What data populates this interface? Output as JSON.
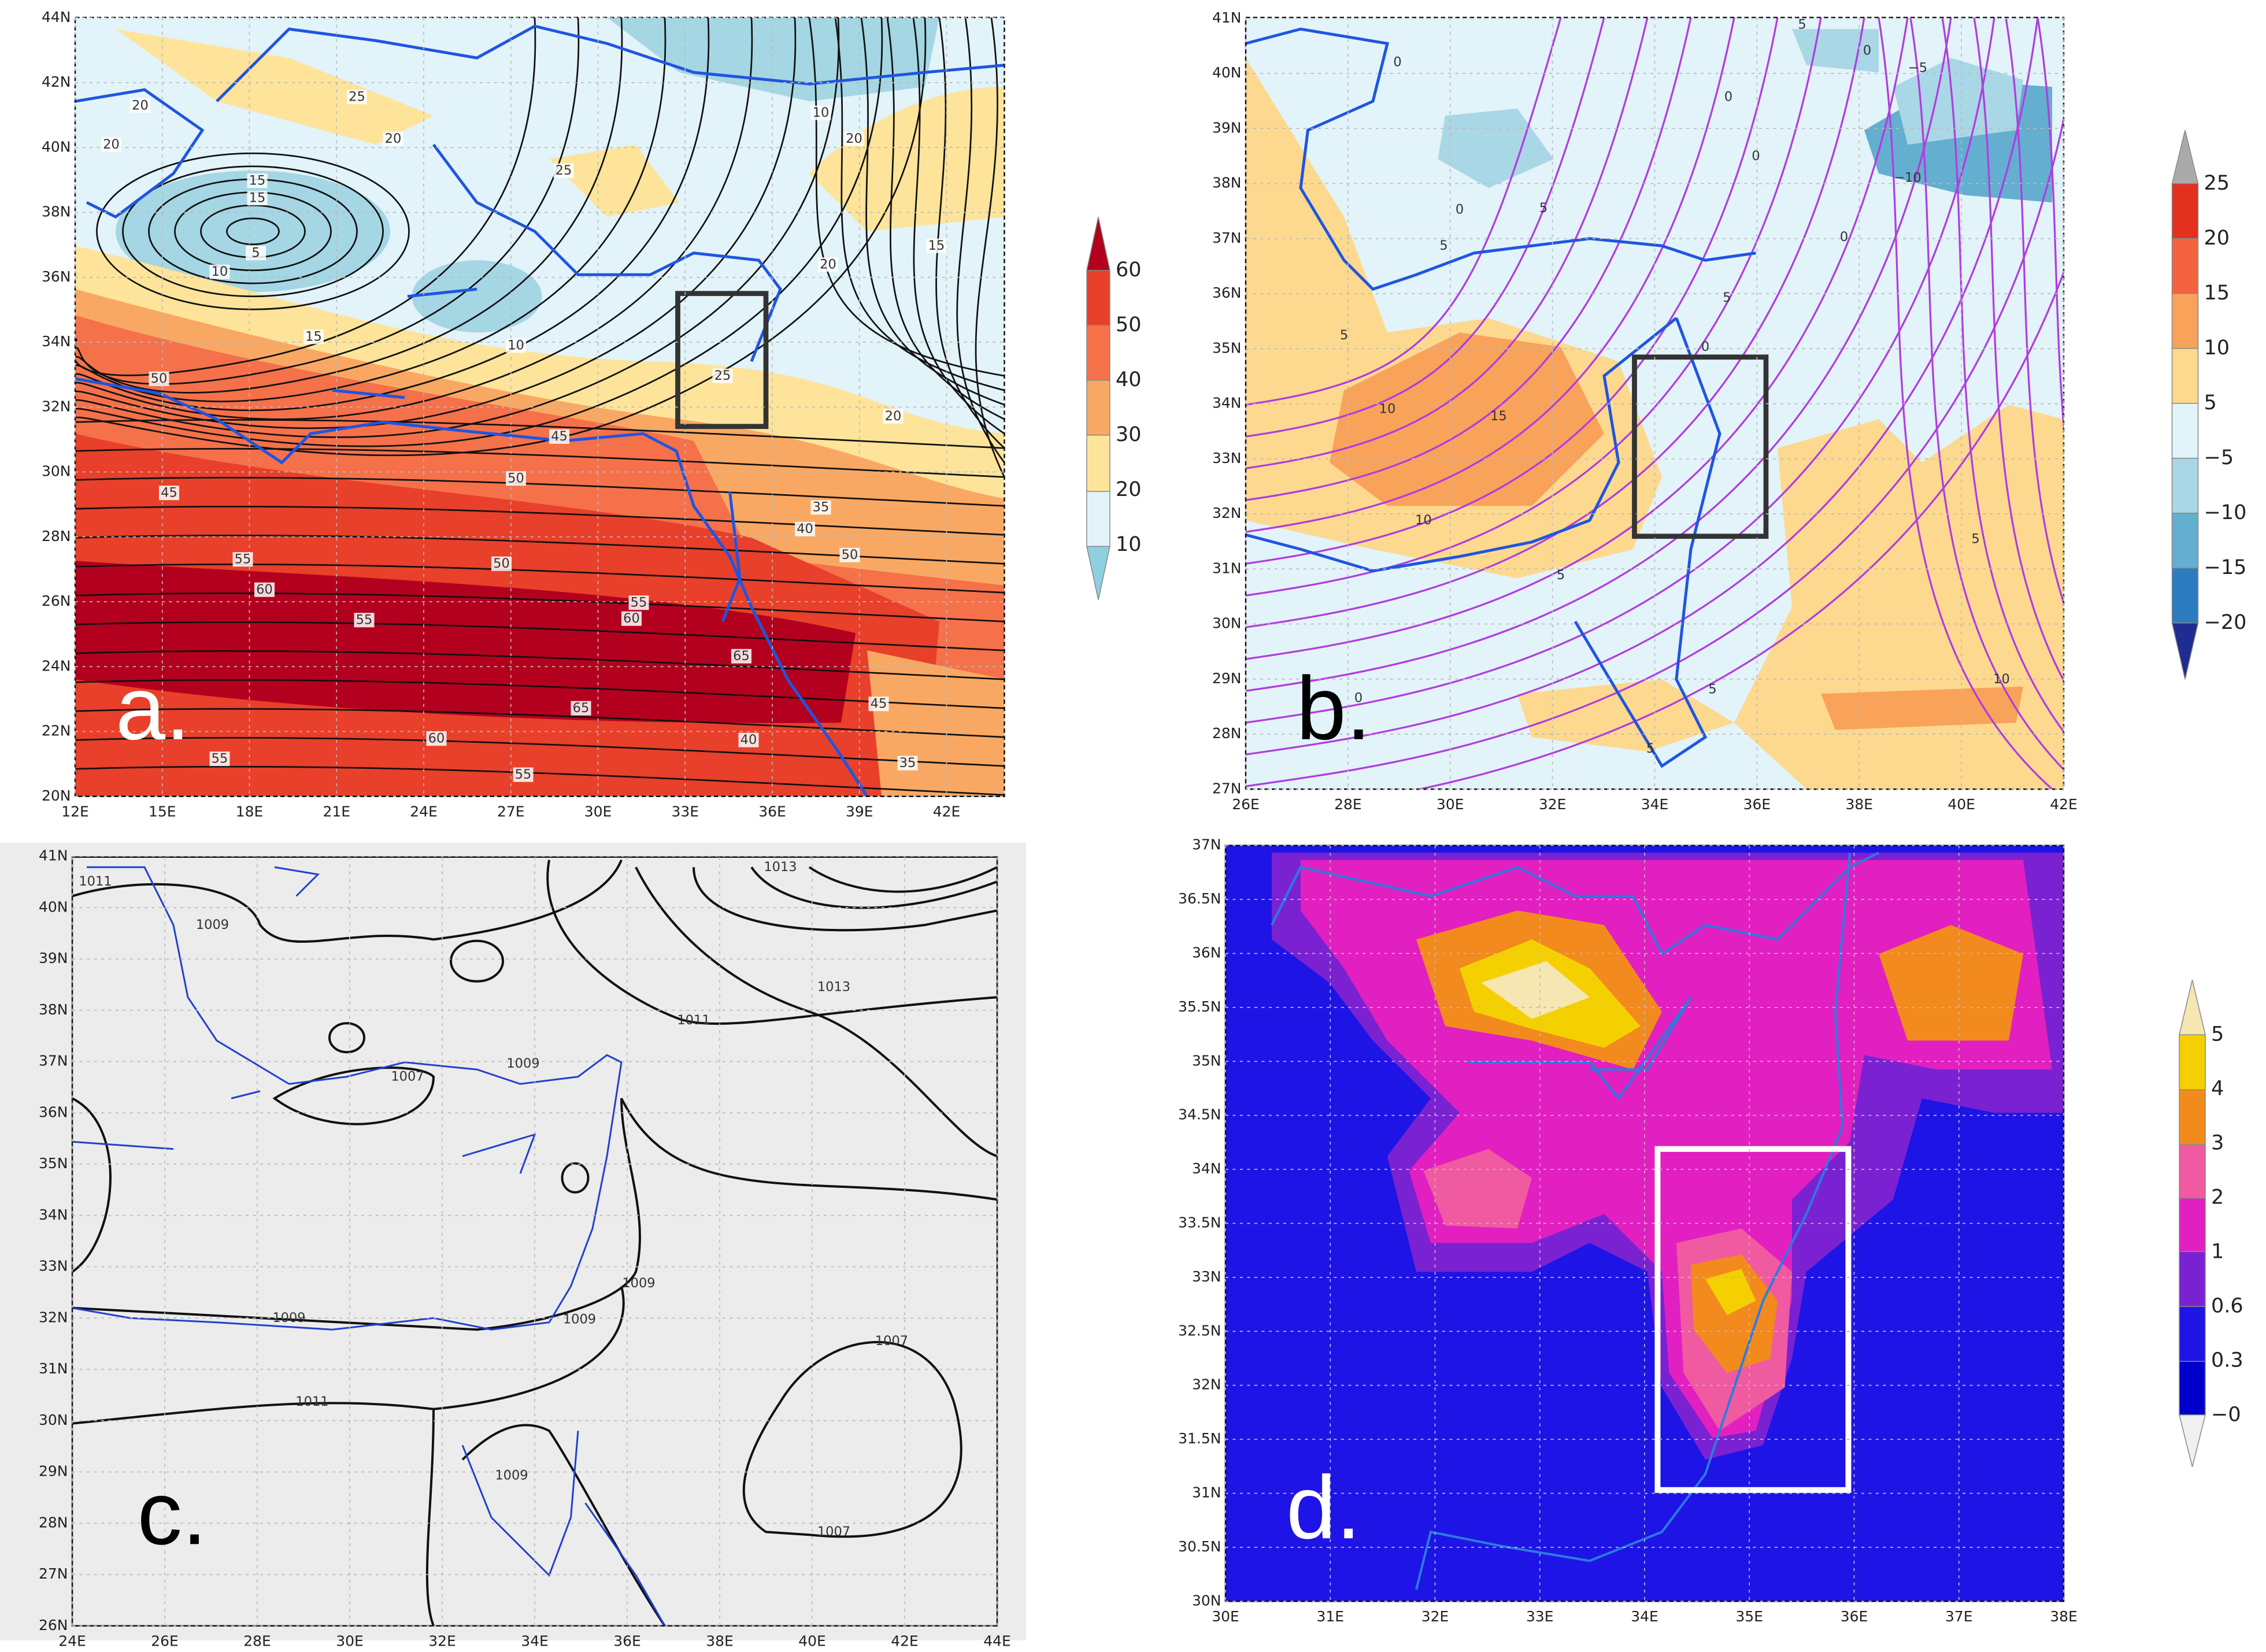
{
  "panels": [
    {
      "letter": "a.",
      "xticks": [
        "12E",
        "15E",
        "18E",
        "21E",
        "24E",
        "27E",
        "30E",
        "33E",
        "36E",
        "39E",
        "42E"
      ],
      "yticks": [
        "20N",
        "22N",
        "24N",
        "26N",
        "28N",
        "30N",
        "32N",
        "34N",
        "36N",
        "38N",
        "40N",
        "42N",
        "44N"
      ],
      "colorbar": [
        "60",
        "50",
        "40",
        "30",
        "20",
        "10"
      ],
      "contour_labels": [
        "20",
        "20",
        "25",
        "20",
        "15",
        "15",
        "5",
        "10",
        "15",
        "10",
        "25",
        "20",
        "10",
        "20",
        "15",
        "20",
        "25",
        "50",
        "45",
        "50",
        "45",
        "50",
        "55",
        "60",
        "55",
        "55",
        "60",
        "65",
        "65",
        "60",
        "55",
        "55",
        "35",
        "40",
        "50",
        "45",
        "40",
        "35"
      ]
    },
    {
      "letter": "b.",
      "xticks": [
        "26E",
        "28E",
        "30E",
        "32E",
        "34E",
        "36E",
        "38E",
        "40E",
        "42E"
      ],
      "yticks": [
        "27N",
        "28N",
        "29N",
        "30N",
        "31N",
        "32N",
        "33N",
        "34N",
        "35N",
        "36N",
        "37N",
        "38N",
        "39N",
        "40N",
        "41N"
      ],
      "colorbar": [
        "25",
        "20",
        "15",
        "10",
        "5",
        "−5",
        "−10",
        "−15",
        "−20"
      ],
      "contour_labels": [
        "0",
        "5",
        "0",
        "−5",
        "0",
        "0",
        "−10",
        "5",
        "0",
        "5",
        "0",
        "5",
        "5",
        "10",
        "15",
        "0",
        "10",
        "5",
        "5",
        "10",
        "0",
        "5",
        "5"
      ]
    },
    {
      "letter": "c.",
      "xticks": [
        "24E",
        "26E",
        "28E",
        "30E",
        "32E",
        "34E",
        "36E",
        "38E",
        "40E",
        "42E",
        "44E"
      ],
      "yticks": [
        "26N",
        "27N",
        "28N",
        "29N",
        "30N",
        "31N",
        "32N",
        "33N",
        "34N",
        "35N",
        "36N",
        "37N",
        "38N",
        "39N",
        "40N",
        "41N"
      ],
      "contour_labels": [
        "1011",
        "1009",
        "1013",
        "1013",
        "1011",
        "1009",
        "1007",
        "1009",
        "1009",
        "1009",
        "1007",
        "1011",
        "1009",
        "1007"
      ]
    },
    {
      "letter": "d.",
      "xticks": [
        "30E",
        "31E",
        "32E",
        "33E",
        "34E",
        "35E",
        "36E",
        "37E",
        "38E"
      ],
      "yticks": [
        "30N",
        "30.5N",
        "31N",
        "31.5N",
        "32N",
        "32.5N",
        "33N",
        "33.5N",
        "34N",
        "34.5N",
        "35N",
        "35.5N",
        "36N",
        "36.5N",
        "37N"
      ],
      "colorbar": [
        "5",
        "4",
        "3",
        "2",
        "1",
        "0.6",
        "0.3",
        "−0"
      ]
    }
  ]
}
